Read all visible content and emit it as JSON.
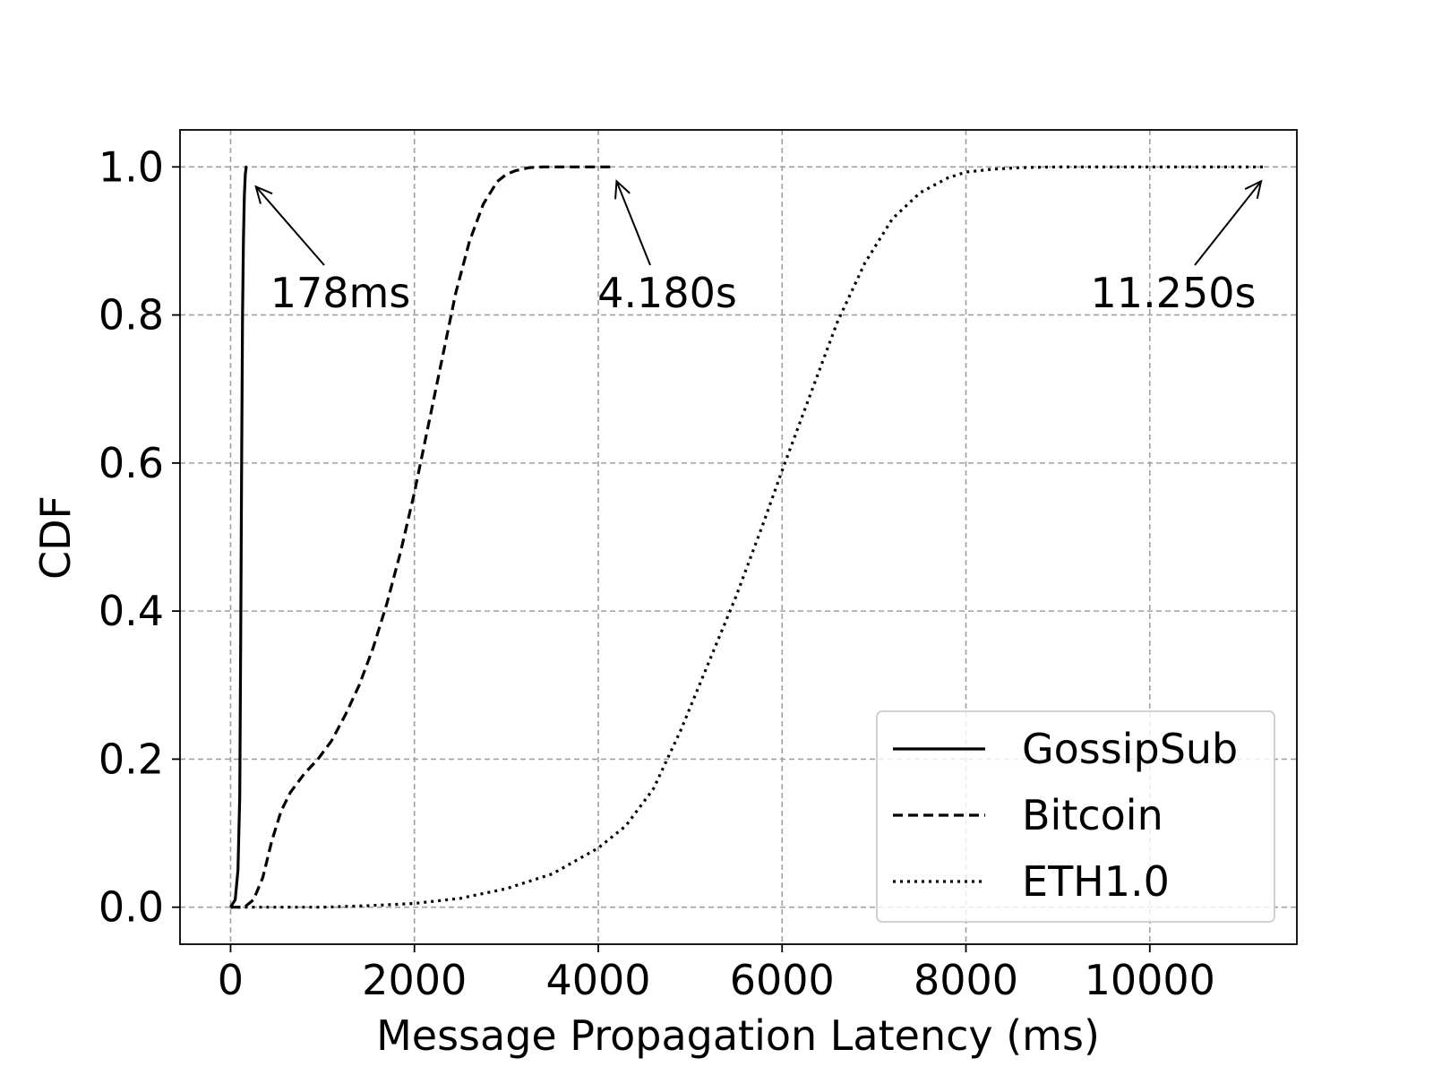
{
  "chart_data": {
    "type": "line",
    "title": "",
    "xlabel": "Message Propagation Latency (ms)",
    "ylabel": "CDF",
    "xlim": [
      -550,
      11600
    ],
    "ylim": [
      -0.05,
      1.05
    ],
    "xticks": [
      0,
      2000,
      4000,
      6000,
      8000,
      10000
    ],
    "xtick_labels": [
      "0",
      "2000",
      "4000",
      "6000",
      "8000",
      "10000"
    ],
    "yticks": [
      0.0,
      0.2,
      0.4,
      0.6,
      0.8,
      1.0
    ],
    "ytick_labels": [
      "0.0",
      "0.2",
      "0.4",
      "0.6",
      "0.8",
      "1.0"
    ],
    "grid": true,
    "legend_position": "bottom-right",
    "series": [
      {
        "name": "GossipSub",
        "line_style": "solid",
        "x": [
          0,
          50,
          80,
          100,
          110,
          120,
          130,
          140,
          150,
          160,
          170,
          178
        ],
        "y": [
          0.0,
          0.01,
          0.05,
          0.15,
          0.35,
          0.6,
          0.8,
          0.9,
          0.96,
          0.99,
          1.0,
          1.0
        ]
      },
      {
        "name": "Bitcoin",
        "line_style": "dashed",
        "x": [
          0,
          150,
          250,
          350,
          450,
          550,
          650,
          800,
          950,
          1100,
          1250,
          1400,
          1550,
          1700,
          1850,
          2000,
          2150,
          2300,
          2450,
          2600,
          2750,
          2900,
          3000,
          3100,
          3250,
          3400,
          3600,
          3800,
          4000,
          4180
        ],
        "y": [
          0.0,
          0.0,
          0.01,
          0.04,
          0.09,
          0.13,
          0.155,
          0.18,
          0.2,
          0.225,
          0.26,
          0.3,
          0.35,
          0.41,
          0.48,
          0.56,
          0.65,
          0.74,
          0.83,
          0.9,
          0.95,
          0.98,
          0.99,
          0.995,
          0.999,
          1.0,
          1.0,
          1.0,
          1.0,
          1.0
        ]
      },
      {
        "name": "ETH1.0",
        "line_style": "dotted",
        "x": [
          0,
          500,
          1000,
          1500,
          2000,
          2500,
          3000,
          3500,
          4000,
          4300,
          4600,
          4900,
          5200,
          5500,
          5800,
          6000,
          6300,
          6600,
          6900,
          7200,
          7500,
          7800,
          8000,
          8300,
          8600,
          9000,
          9500,
          10000,
          10500,
          11250
        ],
        "y": [
          0.0,
          0.0,
          0.0,
          0.002,
          0.005,
          0.012,
          0.025,
          0.045,
          0.08,
          0.11,
          0.16,
          0.24,
          0.33,
          0.42,
          0.52,
          0.59,
          0.69,
          0.79,
          0.87,
          0.93,
          0.965,
          0.985,
          0.993,
          0.997,
          0.999,
          1.0,
          1.0,
          1.0,
          1.0,
          1.0
        ]
      }
    ],
    "annotations": [
      {
        "text": "178ms",
        "x": 178,
        "y": 1.0
      },
      {
        "text": "4.180s",
        "x": 4180,
        "y": 1.0
      },
      {
        "text": "11.250s",
        "x": 11250,
        "y": 1.0
      }
    ]
  }
}
